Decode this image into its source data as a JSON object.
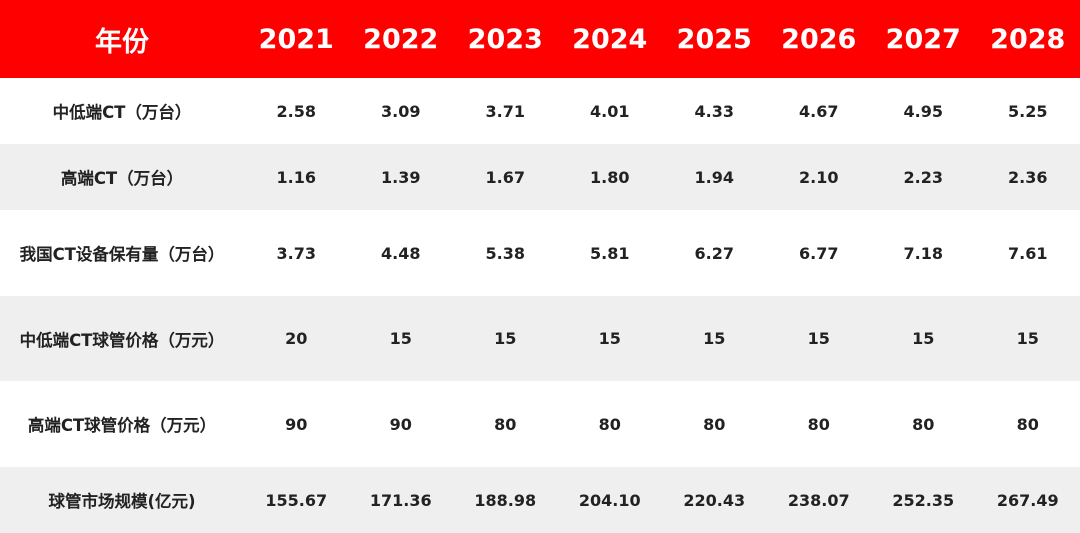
{
  "header": {
    "label": "年份",
    "years": [
      "2021",
      "2022",
      "2023",
      "2024",
      "2025",
      "2026",
      "2027",
      "2028"
    ]
  },
  "rows": [
    {
      "label": "中低端CT（万台）",
      "values": [
        "2.58",
        "3.09",
        "3.71",
        "4.01",
        "4.33",
        "4.67",
        "4.95",
        "5.25"
      ]
    },
    {
      "label": "高端CT（万台）",
      "values": [
        "1.16",
        "1.39",
        "1.67",
        "1.80",
        "1.94",
        "2.10",
        "2.23",
        "2.36"
      ]
    },
    {
      "label": "我国CT设备保有量（万台）",
      "values": [
        "3.73",
        "4.48",
        "5.38",
        "5.81",
        "6.27",
        "6.77",
        "7.18",
        "7.61"
      ]
    },
    {
      "label": "中低端CT球管价格（万元）",
      "values": [
        "20",
        "15",
        "15",
        "15",
        "15",
        "15",
        "15",
        "15"
      ]
    },
    {
      "label": "高端CT球管价格（万元）",
      "values": [
        "90",
        "90",
        "80",
        "80",
        "80",
        "80",
        "80",
        "80"
      ]
    },
    {
      "label": "球管市场规模(亿元)",
      "values": [
        "155.67",
        "171.36",
        "188.98",
        "204.10",
        "220.43",
        "238.07",
        "252.35",
        "267.49"
      ]
    }
  ],
  "colors": {
    "header_bg": "#ff0000",
    "header_text": "#ffffff",
    "stripe": "#efefef"
  }
}
